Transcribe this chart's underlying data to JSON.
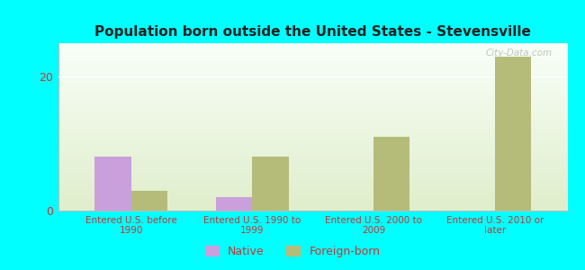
{
  "title": "Population born outside the United States - Stevensville",
  "categories": [
    "Entered U.S. before\n1990",
    "Entered U.S. 1990 to\n1999",
    "Entered U.S. 2000 to\n2009",
    "Entered U.S. 2010 or\nlater"
  ],
  "native_values": [
    8,
    2,
    0,
    0
  ],
  "foreign_values": [
    3,
    8,
    11,
    23
  ],
  "native_color": "#c9a0dc",
  "foreign_color": "#b5bc7a",
  "background_color": "#00ffff",
  "plot_bg_top": "#f8fff8",
  "plot_bg_bottom": "#e0eecc",
  "title_color": "#222222",
  "tick_label_color": "#cc3333",
  "ylim": [
    0,
    25
  ],
  "yticks": [
    0,
    20
  ],
  "bar_width": 0.3,
  "watermark": "City-Data.com",
  "legend_labels": [
    "Native",
    "Foreign-born"
  ]
}
